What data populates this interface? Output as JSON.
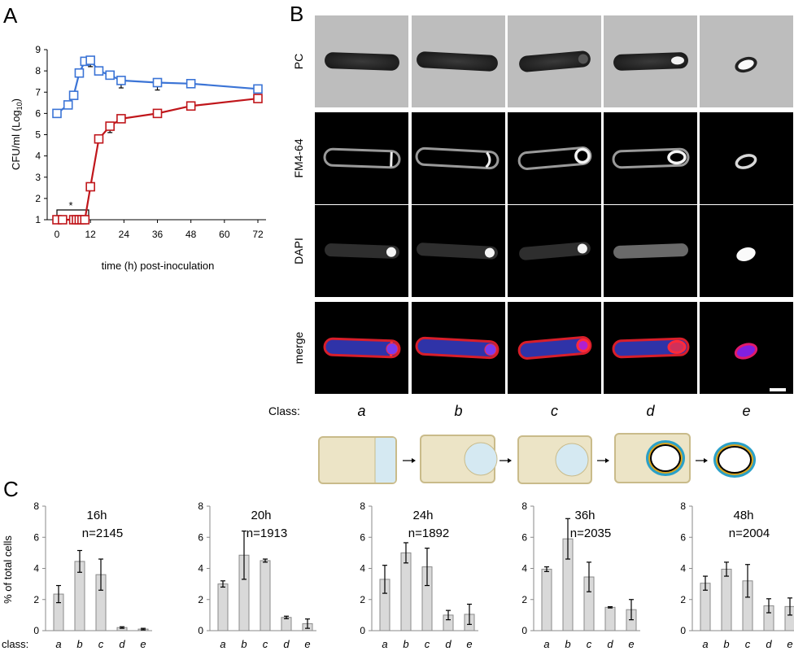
{
  "panels": {
    "a": "A",
    "b": "B",
    "c": "C"
  },
  "growth": {
    "ylabel_main": "CFU/ml (Log",
    "ylabel_sub": "10",
    "ylabel_close": ")",
    "xlabel": "time (h) post-inoculation",
    "y_ticks": [
      "1",
      "2",
      "3",
      "4",
      "5",
      "6",
      "7",
      "8",
      "9"
    ],
    "x_ticks": [
      "0",
      "12",
      "24",
      "36",
      "48",
      "60",
      "72"
    ],
    "star": "*",
    "colors": {
      "blue": "#3b74d6",
      "red": "#c0161b"
    }
  },
  "micro": {
    "rows": [
      "PC",
      "FM4-64",
      "DAPI",
      "merge"
    ],
    "class_label": "Class:",
    "classes": [
      "a",
      "b",
      "c",
      "d",
      "e"
    ]
  },
  "histos": {
    "ylabel": "% of total cells",
    "class_label": "class:",
    "y_ticks": [
      "0",
      "2",
      "4",
      "6",
      "8"
    ]
  },
  "chart_data": [
    {
      "type": "line",
      "xlabel": "time (h) post-inoculation",
      "ylabel": "CFU/ml (Log10)",
      "xlim": [
        0,
        72
      ],
      "ylim": [
        1,
        9
      ],
      "series": [
        {
          "x": [
            0,
            4,
            6,
            8,
            10,
            12,
            15,
            19,
            23,
            36,
            48,
            72
          ],
          "y": [
            6.0,
            6.4,
            6.85,
            7.9,
            8.45,
            8.5,
            8.0,
            7.8,
            7.55,
            7.45,
            7.4,
            7.15
          ],
          "err": [
            0,
            0,
            0,
            0,
            0,
            0.3,
            0,
            0,
            0.35,
            0.35,
            0,
            0
          ]
        },
        {
          "x": [
            0,
            2,
            6,
            7,
            8,
            9,
            10,
            12,
            15,
            19,
            23,
            36,
            48,
            72
          ],
          "y": [
            1,
            1,
            1,
            1,
            1,
            1,
            1,
            2.55,
            4.8,
            5.4,
            5.75,
            6.0,
            6.35,
            6.7
          ],
          "err": [
            0,
            0,
            0,
            0,
            0,
            0,
            0,
            0,
            0,
            0.3,
            0,
            0,
            0,
            0
          ]
        }
      ]
    },
    {
      "type": "bar",
      "title": "16h",
      "n": "n=2145",
      "categories": [
        "a",
        "b",
        "c",
        "d",
        "e"
      ],
      "values": [
        2.35,
        4.45,
        3.6,
        0.2,
        0.1
      ],
      "errors": [
        0.55,
        0.7,
        1.0,
        0.05,
        0.05
      ],
      "ylim": [
        0,
        8
      ]
    },
    {
      "type": "bar",
      "title": "20h",
      "n": "n=1913",
      "categories": [
        "a",
        "b",
        "c",
        "d",
        "e"
      ],
      "values": [
        3.0,
        4.85,
        4.5,
        0.85,
        0.45
      ],
      "errors": [
        0.2,
        1.55,
        0.1,
        0.08,
        0.3
      ],
      "ylim": [
        0,
        8
      ]
    },
    {
      "type": "bar",
      "title": "24h",
      "n": "n=1892",
      "categories": [
        "a",
        "b",
        "c",
        "d",
        "e"
      ],
      "values": [
        3.3,
        5.0,
        4.1,
        1.0,
        1.05
      ],
      "errors": [
        0.9,
        0.65,
        1.2,
        0.3,
        0.65
      ],
      "ylim": [
        0,
        8
      ]
    },
    {
      "type": "bar",
      "title": "36h",
      "n": "n=2035",
      "categories": [
        "a",
        "b",
        "c",
        "d",
        "e"
      ],
      "values": [
        3.95,
        5.9,
        3.45,
        1.5,
        1.35
      ],
      "errors": [
        0.15,
        1.3,
        0.95,
        0.04,
        0.65
      ],
      "ylim": [
        0,
        8
      ]
    },
    {
      "type": "bar",
      "title": "48h",
      "n": "n=2004",
      "categories": [
        "a",
        "b",
        "c",
        "d",
        "e"
      ],
      "values": [
        3.05,
        3.95,
        3.2,
        1.6,
        1.55
      ],
      "errors": [
        0.45,
        0.45,
        1.05,
        0.45,
        0.55
      ],
      "ylim": [
        0,
        8
      ]
    }
  ]
}
